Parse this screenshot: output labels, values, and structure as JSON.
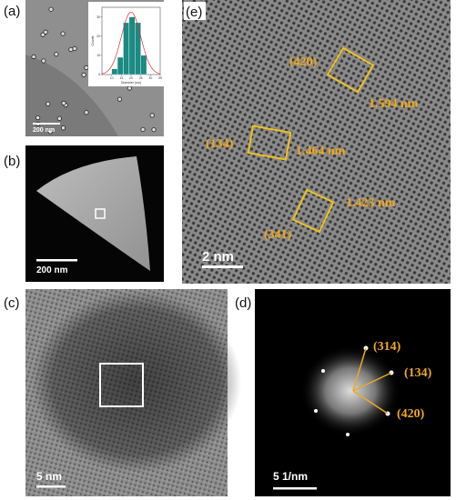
{
  "panels": [
    {
      "label": "(a)",
      "scale_bar": "200 nm",
      "inset": {
        "y_label": "Counts",
        "x_label": "Diameter (nm)",
        "bins": [
          10,
          13,
          16,
          19,
          22,
          25,
          28
        ],
        "counts": [
          3,
          9,
          27,
          30,
          27,
          10
        ],
        "xlim": [
          5,
          35
        ],
        "xticks": [
          10,
          15,
          20,
          25,
          30,
          35
        ],
        "ylim": [
          0,
          35
        ],
        "yticks": [
          0,
          10,
          20,
          30
        ]
      }
    },
    {
      "label": "(b)",
      "scale_bar": "200 nm"
    },
    {
      "label": "(c)",
      "scale_bar": "5 nm"
    },
    {
      "label": "(d)",
      "scale_bar": "5 1/nm",
      "annotations": [
        "(314)",
        "(134)",
        "(420)"
      ]
    },
    {
      "label": "(e)",
      "scale_bar": "2 nm",
      "annotations": [
        "(420)",
        "1.594 nm",
        "(134)",
        "1.464 nm",
        "1.423 nm",
        "(341)"
      ]
    }
  ]
}
